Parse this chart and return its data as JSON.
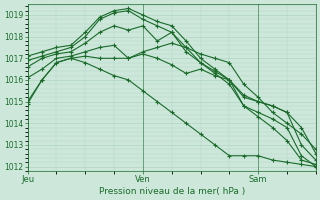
{
  "title": "Pression niveau de la mer( hPa )",
  "bg_color": "#cde8db",
  "grid_color": "#b0d4c5",
  "line_color": "#1a6b2a",
  "ylim": [
    1011.8,
    1019.5
  ],
  "yticks": [
    1012,
    1013,
    1014,
    1015,
    1016,
    1017,
    1018,
    1019
  ],
  "x_day_labels": [
    [
      "Jeu",
      0
    ],
    [
      "Ven",
      8
    ],
    [
      "Sam",
      16
    ]
  ],
  "xlim": [
    0,
    20
  ],
  "series": [
    [
      1015.0,
      1016.0,
      1016.8,
      1017.0,
      1017.1,
      1017.0,
      1017.0,
      1017.0,
      1017.3,
      1017.5,
      1017.7,
      1017.5,
      1017.2,
      1017.0,
      1016.8,
      1015.8,
      1015.2,
      1014.5,
      1014.0,
      1013.5,
      1012.8
    ],
    [
      1016.1,
      1016.5,
      1017.0,
      1017.1,
      1017.3,
      1017.5,
      1017.6,
      1017.0,
      1017.2,
      1017.0,
      1016.7,
      1016.3,
      1016.5,
      1016.2,
      1016.0,
      1015.3,
      1015.0,
      1014.8,
      1014.5,
      1013.8,
      1012.6
    ],
    [
      1016.6,
      1017.0,
      1017.2,
      1017.3,
      1017.7,
      1018.2,
      1018.5,
      1018.3,
      1018.5,
      1017.8,
      1018.2,
      1017.3,
      1016.8,
      1016.4,
      1016.0,
      1015.2,
      1015.0,
      1014.8,
      1014.5,
      1013.0,
      1012.3
    ],
    [
      1016.9,
      1017.1,
      1017.3,
      1017.5,
      1018.0,
      1018.8,
      1019.1,
      1019.2,
      1018.8,
      1018.5,
      1018.2,
      1017.5,
      1016.8,
      1016.3,
      1015.8,
      1014.8,
      1014.5,
      1014.2,
      1013.8,
      1012.5,
      1012.0
    ],
    [
      1017.1,
      1017.3,
      1017.5,
      1017.6,
      1018.2,
      1018.9,
      1019.2,
      1019.3,
      1019.0,
      1018.7,
      1018.5,
      1017.8,
      1017.0,
      1016.5,
      1016.0,
      1014.8,
      1014.3,
      1013.8,
      1013.2,
      1012.3,
      1012.1
    ],
    [
      1014.9,
      1016.0,
      1016.8,
      1017.0,
      1016.8,
      1016.5,
      1016.2,
      1016.0,
      1015.5,
      1015.0,
      1014.5,
      1014.0,
      1013.5,
      1013.0,
      1012.5,
      1012.5,
      1012.5,
      1012.3,
      1012.2,
      1012.1,
      1012.0
    ]
  ]
}
